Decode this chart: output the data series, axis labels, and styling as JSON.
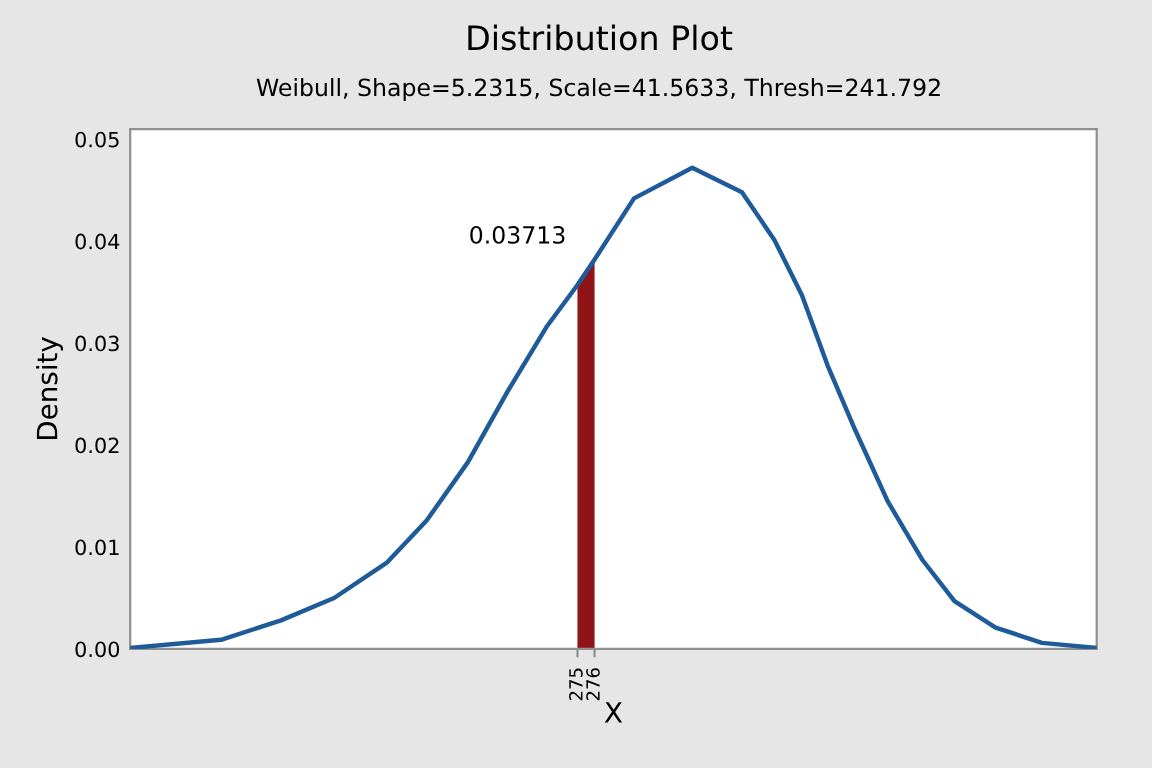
{
  "chart_data": {
    "type": "line",
    "title": "Distribution Plot",
    "subtitle": "Weibull, Shape=5.2315, Scale=41.5633, Thresh=241.792",
    "xlabel": "X",
    "ylabel": "Density",
    "series": [
      {
        "type": "line",
        "color": "#1f5b99",
        "x": [
          248.9,
          254.2,
          257.7,
          260.8,
          263.9,
          266.2,
          268.6,
          270.9,
          273.2,
          275.0,
          276.0,
          278.3,
          281.7,
          284.6,
          286.5,
          288.1,
          289.6,
          291.2,
          293.1,
          295.1,
          297.0,
          299.4,
          302.1,
          305.3
        ],
        "values": [
          0.0001,
          0.0009,
          0.0028,
          0.005,
          0.0085,
          0.0126,
          0.0183,
          0.0252,
          0.0316,
          0.0357,
          0.0382,
          0.0442,
          0.0472,
          0.0448,
          0.0401,
          0.0347,
          0.0278,
          0.0215,
          0.0145,
          0.0088,
          0.0047,
          0.0021,
          0.0006,
          0.0001
        ]
      },
      {
        "type": "area",
        "color": "#8f1416",
        "x": [
          275,
          276
        ],
        "values": [
          0.0357,
          0.0382
        ]
      }
    ],
    "annotations": [
      "0.03713"
    ],
    "xlim": [
      248.9,
      305.3
    ],
    "xticks": [
      275,
      276
    ],
    "ylim": [
      0,
      0.051
    ],
    "yticks": [
      {
        "value": 0,
        "label": "0.00"
      },
      {
        "value": 0.01,
        "label": "0.01"
      },
      {
        "value": 0.02,
        "label": "0.02"
      },
      {
        "value": 0.03,
        "label": "0.03"
      },
      {
        "value": 0.04,
        "label": "0.04"
      },
      {
        "value": 0.05,
        "label": "0.05"
      }
    ],
    "grid": false,
    "legend": false
  }
}
